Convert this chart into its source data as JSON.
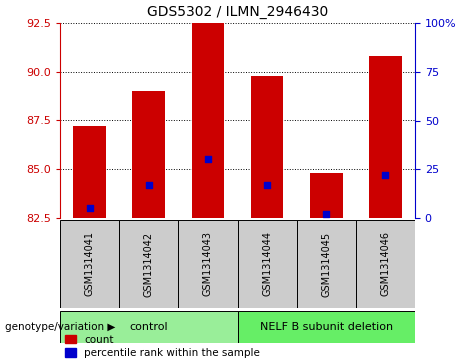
{
  "title": "GDS5302 / ILMN_2946430",
  "samples": [
    "GSM1314041",
    "GSM1314042",
    "GSM1314043",
    "GSM1314044",
    "GSM1314045",
    "GSM1314046"
  ],
  "group_labels": [
    "control",
    "NELF B subunit deletion"
  ],
  "bar_values": [
    87.2,
    89.0,
    92.5,
    89.8,
    84.8,
    90.8
  ],
  "bar_base": 82.5,
  "percentile_values": [
    5,
    17,
    30,
    17,
    2,
    22
  ],
  "ylim_left": [
    82.5,
    92.5
  ],
  "ylim_right": [
    0,
    100
  ],
  "yticks_left": [
    82.5,
    85.0,
    87.5,
    90.0,
    92.5
  ],
  "yticks_right": [
    0,
    25,
    50,
    75,
    100
  ],
  "bar_color": "#cc0000",
  "dot_color": "#0000cc",
  "sample_header_bg": "#cccccc",
  "group_bg_control": "#99ee99",
  "group_bg_deletion": "#66ee66",
  "left_axis_color": "#cc0000",
  "right_axis_color": "#0000cc",
  "bar_width": 0.55,
  "legend_items": [
    "count",
    "percentile rank within the sample"
  ],
  "genotype_label": "genotype/variation"
}
